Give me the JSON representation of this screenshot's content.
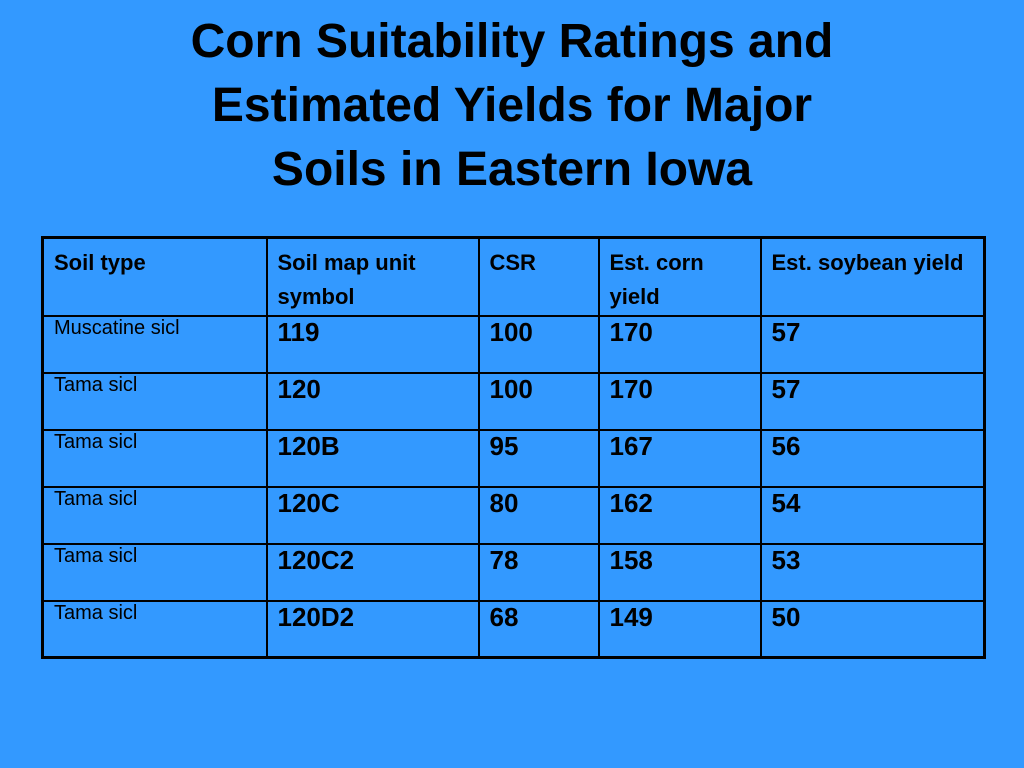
{
  "title": {
    "line1": "Corn Suitability Ratings and",
    "line2": "Estimated Yields for Major",
    "line3": "Soils in Eastern Iowa"
  },
  "table": {
    "headers": [
      "Soil type",
      "Soil map unit symbol",
      "CSR",
      "Est. corn yield",
      "Est. soybean yield"
    ],
    "rows": [
      [
        "Muscatine sicl",
        "119",
        "100",
        "170",
        "57"
      ],
      [
        "Tama sicl",
        "120",
        "100",
        "170",
        "57"
      ],
      [
        "Tama sicl",
        "120B",
        "95",
        "167",
        "56"
      ],
      [
        "Tama sicl",
        "120C",
        "80",
        "162",
        "54"
      ],
      [
        "Tama sicl",
        "120C2",
        "78",
        "158",
        "53"
      ],
      [
        "Tama sicl",
        "120D2",
        "68",
        "149",
        "50"
      ]
    ]
  }
}
